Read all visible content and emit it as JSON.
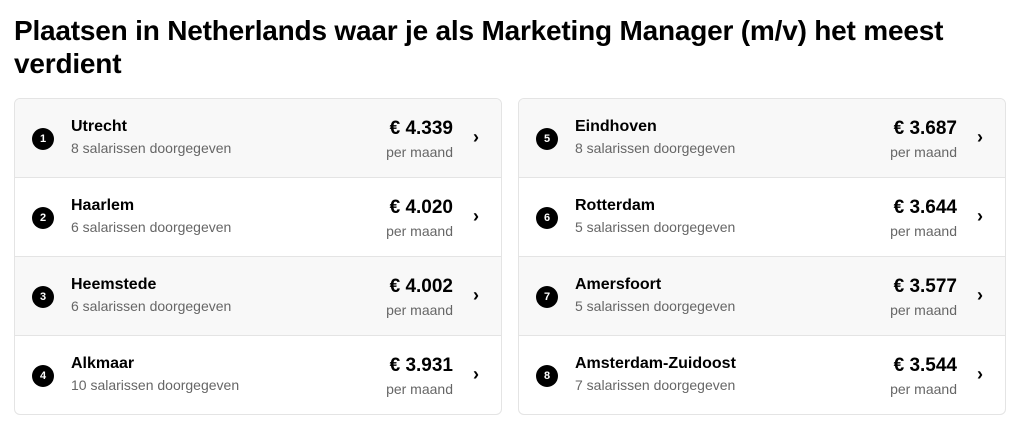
{
  "title": "Plaatsen in Netherlands waar je als Marketing Manager (m/v) het meest verdient",
  "per_label": "per maand",
  "columns": [
    [
      {
        "rank": "1",
        "city": "Utrecht",
        "count": "8 salarissen doorgegeven",
        "salary": "€ 4.339"
      },
      {
        "rank": "2",
        "city": "Haarlem",
        "count": "6 salarissen doorgegeven",
        "salary": "€ 4.020"
      },
      {
        "rank": "3",
        "city": "Heemstede",
        "count": "6 salarissen doorgegeven",
        "salary": "€ 4.002"
      },
      {
        "rank": "4",
        "city": "Alkmaar",
        "count": "10 salarissen doorgegeven",
        "salary": "€ 3.931"
      }
    ],
    [
      {
        "rank": "5",
        "city": "Eindhoven",
        "count": "8 salarissen doorgegeven",
        "salary": "€ 3.687"
      },
      {
        "rank": "6",
        "city": "Rotterdam",
        "count": "5 salarissen doorgegeven",
        "salary": "€ 3.644"
      },
      {
        "rank": "7",
        "city": "Amersfoort",
        "count": "5 salarissen doorgegeven",
        "salary": "€ 3.577"
      },
      {
        "rank": "8",
        "city": "Amsterdam-Zuidoost",
        "count": "7 salarissen doorgegeven",
        "salary": "€ 3.544"
      }
    ]
  ]
}
